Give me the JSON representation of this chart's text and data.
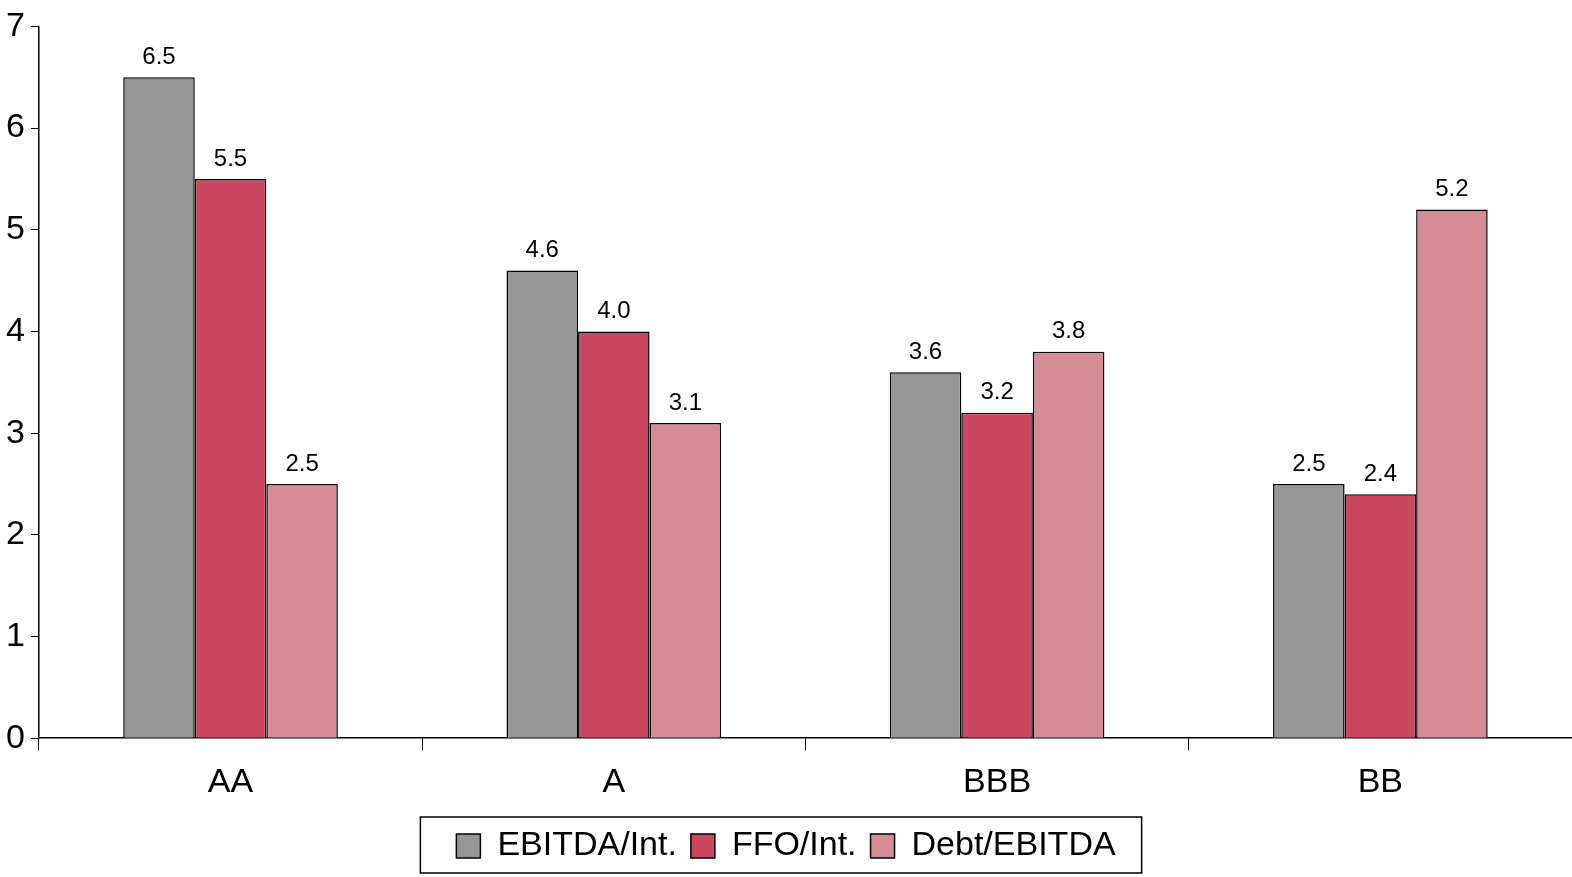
{
  "chart_data": {
    "type": "bar",
    "categories": [
      "AA",
      "A",
      "BBB",
      "BB"
    ],
    "series": [
      {
        "name": "EBITDA/Int.",
        "color": "#969696",
        "values": [
          6.5,
          4.6,
          3.6,
          2.5
        ],
        "value_labels": [
          "6.5",
          "4.6",
          "3.6",
          "2.5"
        ]
      },
      {
        "name": "FFO/Int.",
        "color": "#cc4760",
        "values": [
          5.5,
          4.0,
          3.2,
          2.4
        ],
        "value_labels": [
          "5.5",
          "4.0",
          "3.2",
          "2.4"
        ]
      },
      {
        "name": "Debt/EBITDA",
        "color": "#d68c96",
        "values": [
          2.5,
          3.1,
          3.8,
          5.2
        ],
        "value_labels": [
          "2.5",
          "3.1",
          "3.8",
          "5.2"
        ]
      }
    ],
    "ylim": [
      0,
      7
    ],
    "yticks": [
      0,
      1,
      2,
      3,
      4,
      5,
      6,
      7
    ],
    "grid": false,
    "legend": "bottom"
  }
}
